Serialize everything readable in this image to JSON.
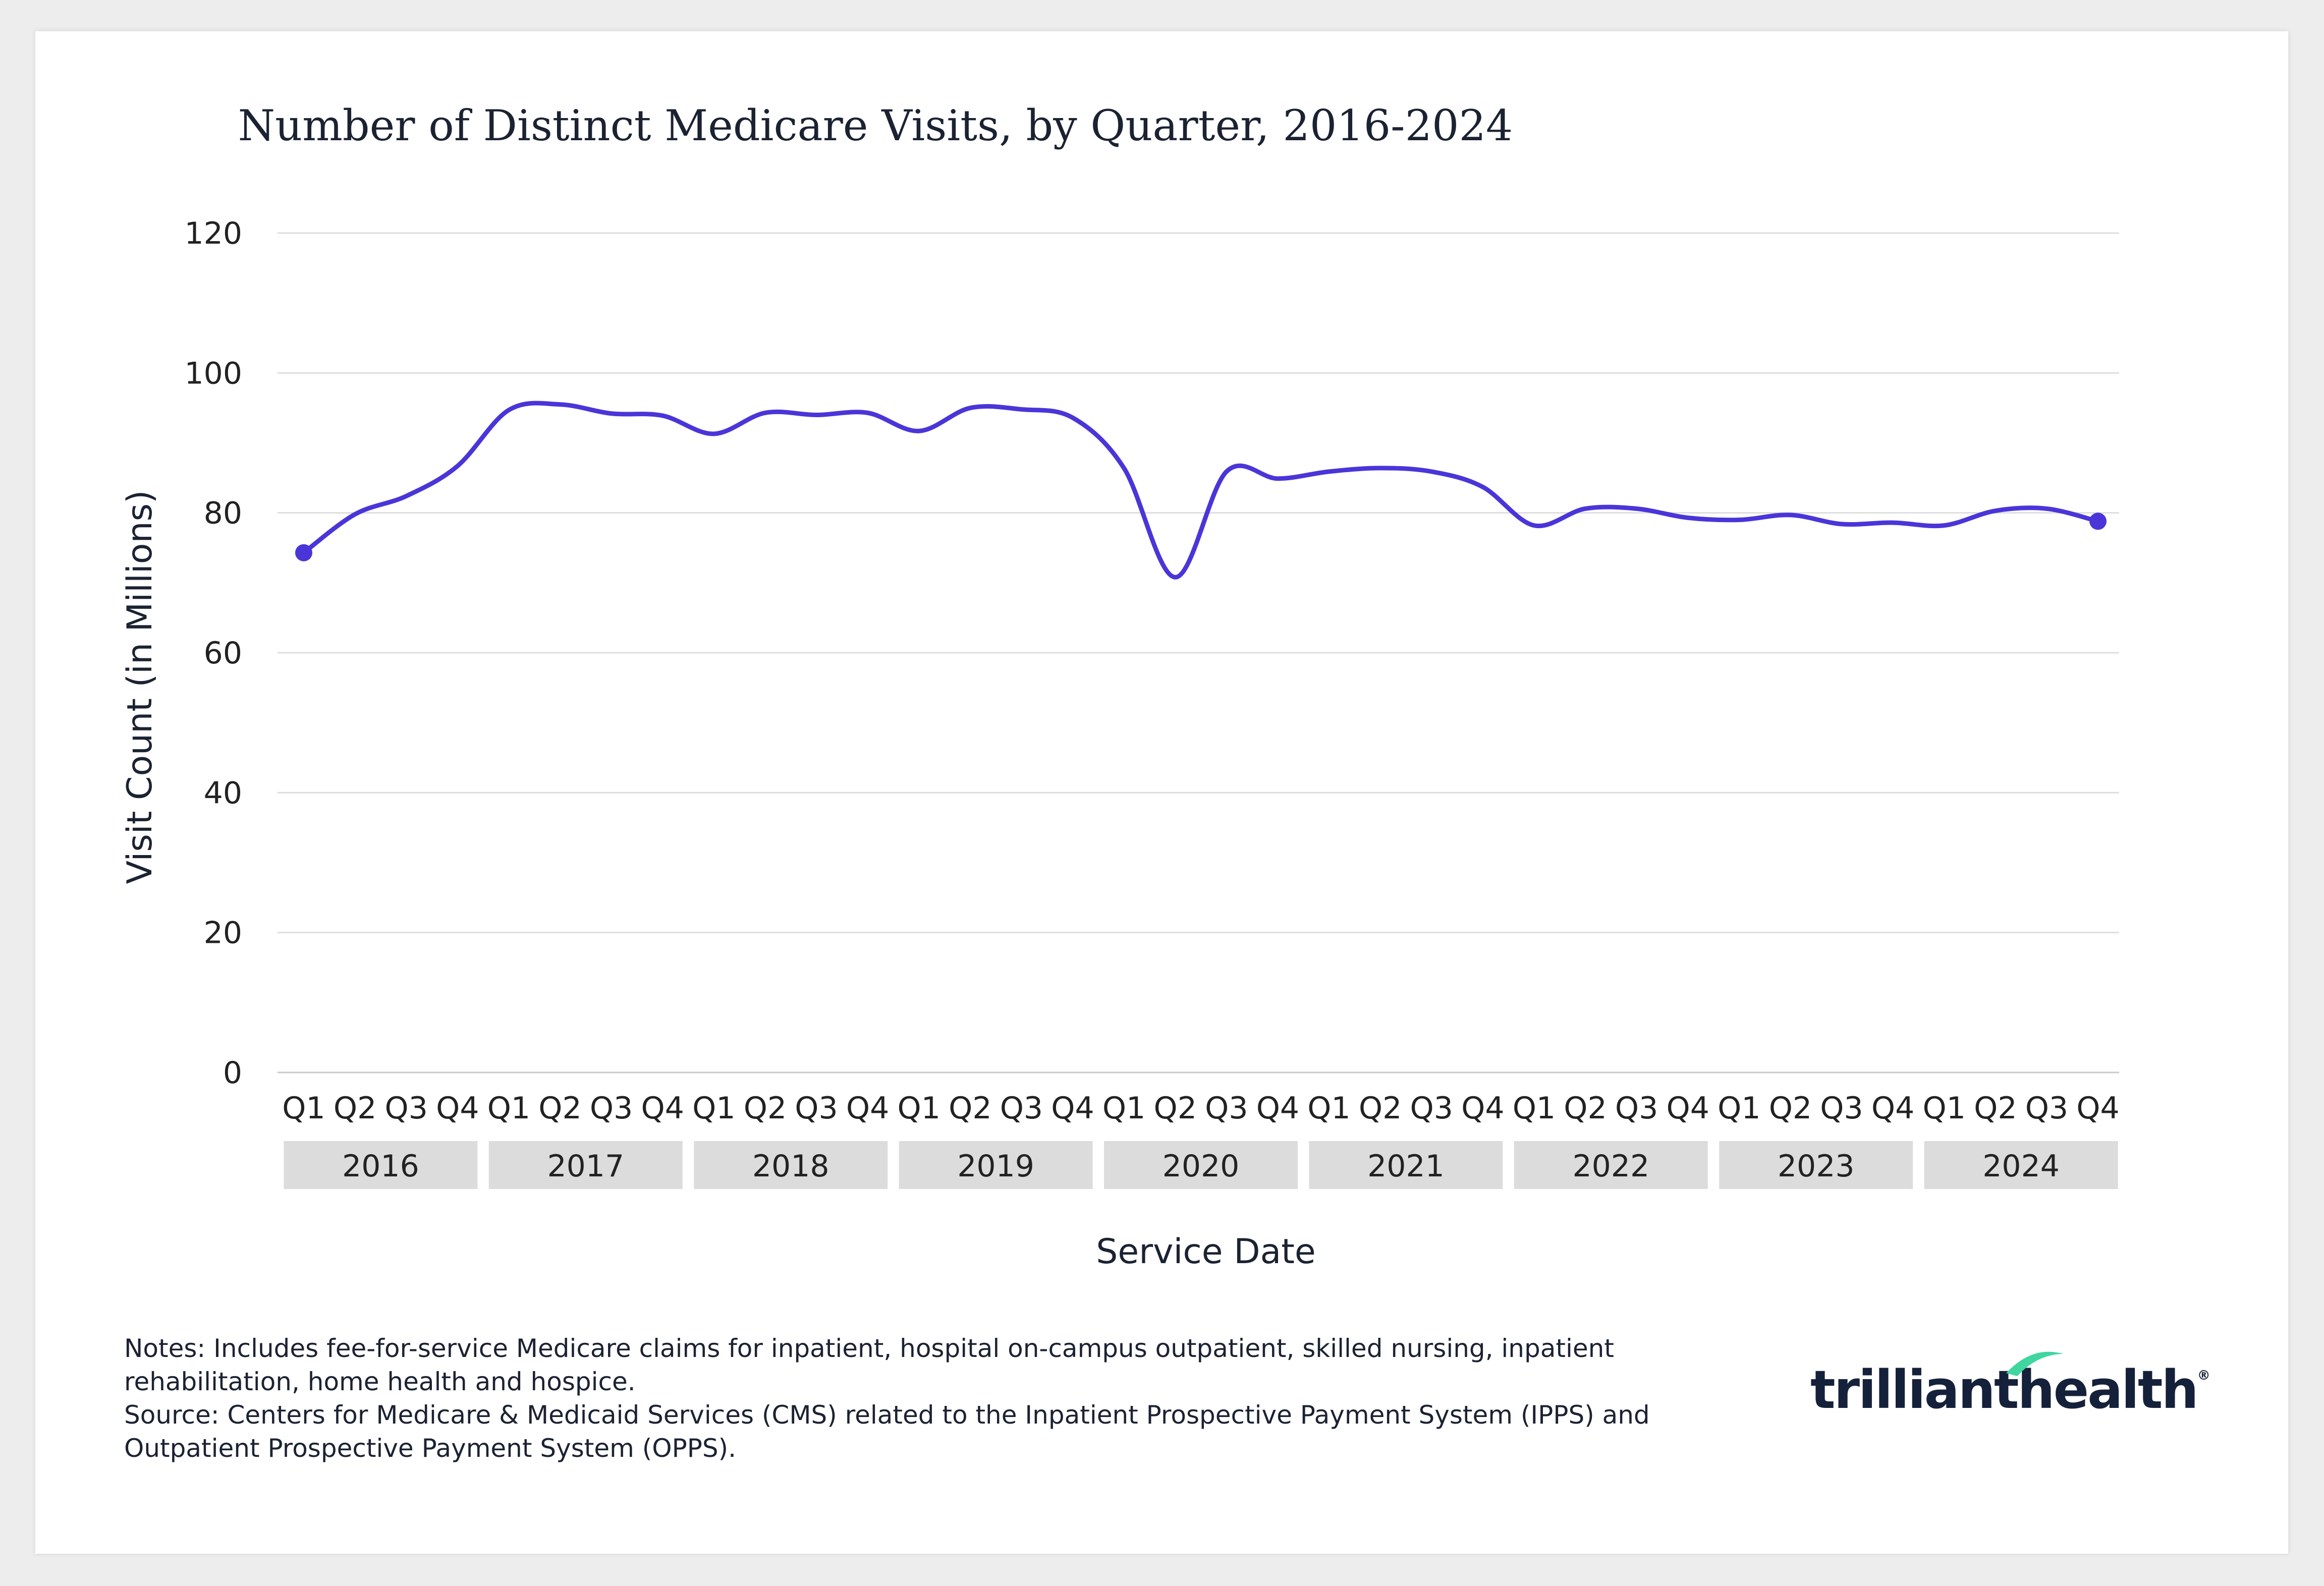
{
  "chart_data": {
    "type": "line",
    "title": "Number of Distinct Medicare Visits, by Quarter, 2016-2024",
    "xlabel": "Service Date",
    "ylabel": "Visit Count (in Millions)",
    "ylim": [
      0,
      120
    ],
    "yticks": [
      "0",
      "20",
      "40",
      "60",
      "80",
      "100",
      "120"
    ],
    "grid": true,
    "quarters": [
      "Q1",
      "Q2",
      "Q3",
      "Q4"
    ],
    "years": [
      "2016",
      "2017",
      "2018",
      "2019",
      "2020",
      "2021",
      "2022",
      "2023",
      "2024"
    ],
    "series": [
      {
        "name": "Distinct Medicare Visits",
        "color": "#4a35d9",
        "values": [
          74.3,
          79.8,
          82.4,
          86.7,
          94.7,
          95.5,
          94.2,
          93.9,
          91.3,
          94.3,
          94.0,
          94.3,
          91.7,
          95.0,
          94.8,
          93.6,
          86.4,
          70.8,
          85.9,
          84.9,
          85.9,
          86.4,
          85.9,
          83.7,
          78.2,
          80.6,
          80.6,
          79.3,
          79.0,
          79.7,
          78.4,
          78.6,
          78.2,
          80.3,
          80.6,
          78.8
        ],
        "markers": "endpoints"
      }
    ]
  },
  "notes": {
    "line1": "Notes: Includes fee-for-service Medicare claims for inpatient, hospital on-campus outpatient, skilled nursing, inpatient rehabilitation, home health and hospice.",
    "line2": "Source: Centers for Medicare & Medicaid Services (CMS) related to the Inpatient Prospective Payment System (IPPS) and Outpatient Prospective Payment System (OPPS)."
  },
  "logo": {
    "word1": "trilliant",
    "word2": "health",
    "reg": "®"
  }
}
